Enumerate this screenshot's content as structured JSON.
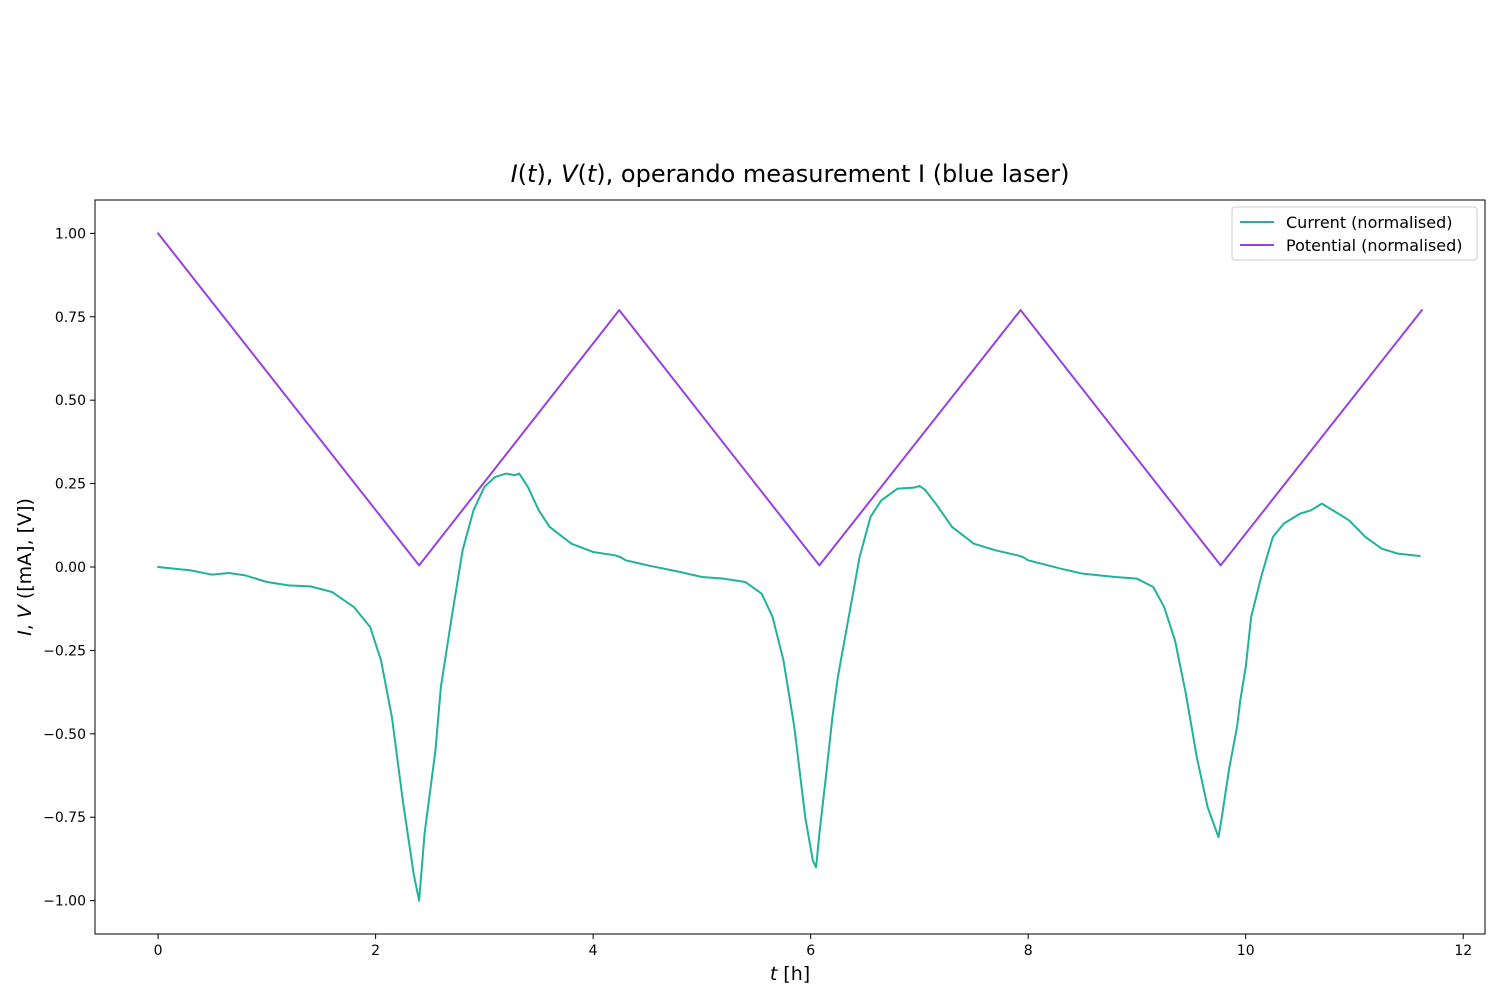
{
  "chart_data": {
    "type": "line",
    "title": "I(t), V(t), operando measurement I (blue laser)",
    "xlabel": "t [h]",
    "ylabel": "I, V ([mA], [V])",
    "xlim": [
      -0.58,
      12.2
    ],
    "ylim": [
      -1.1,
      1.1
    ],
    "x_ticks": [
      0,
      2,
      4,
      6,
      8,
      10,
      12
    ],
    "y_ticks": [
      1.0,
      0.75,
      0.5,
      0.25,
      0.0,
      -0.25,
      -0.5,
      -0.75,
      -1.0
    ],
    "x_tick_labels": [
      "0",
      "2",
      "4",
      "6",
      "8",
      "10",
      "12"
    ],
    "y_tick_labels": [
      "1.00",
      "0.75",
      "0.50",
      "0.25",
      "0.00",
      "−0.25",
      "−0.50",
      "−0.75",
      "−1.00"
    ],
    "grid": false,
    "legend_position": "top-right",
    "series": [
      {
        "name": "Current (normalised)",
        "color": "#20b29a",
        "points": [
          [
            0.0,
            0.0
          ],
          [
            0.3,
            -0.01
          ],
          [
            0.45,
            -0.02
          ],
          [
            0.5,
            -0.023
          ],
          [
            0.65,
            -0.018
          ],
          [
            0.8,
            -0.025
          ],
          [
            1.0,
            -0.045
          ],
          [
            1.2,
            -0.055
          ],
          [
            1.4,
            -0.058
          ],
          [
            1.6,
            -0.075
          ],
          [
            1.8,
            -0.12
          ],
          [
            1.95,
            -0.18
          ],
          [
            2.05,
            -0.28
          ],
          [
            2.15,
            -0.45
          ],
          [
            2.25,
            -0.7
          ],
          [
            2.35,
            -0.92
          ],
          [
            2.4,
            -1.0
          ],
          [
            2.45,
            -0.8
          ],
          [
            2.55,
            -0.55
          ],
          [
            2.6,
            -0.36
          ],
          [
            2.7,
            -0.15
          ],
          [
            2.8,
            0.05
          ],
          [
            2.9,
            0.17
          ],
          [
            3.0,
            0.24
          ],
          [
            3.1,
            0.27
          ],
          [
            3.2,
            0.28
          ],
          [
            3.28,
            0.275
          ],
          [
            3.32,
            0.28
          ],
          [
            3.4,
            0.24
          ],
          [
            3.5,
            0.17
          ],
          [
            3.6,
            0.12
          ],
          [
            3.8,
            0.07
          ],
          [
            4.0,
            0.045
          ],
          [
            4.2,
            0.035
          ],
          [
            4.25,
            0.03
          ],
          [
            4.3,
            0.02
          ],
          [
            4.5,
            0.005
          ],
          [
            4.8,
            -0.015
          ],
          [
            5.0,
            -0.03
          ],
          [
            5.2,
            -0.035
          ],
          [
            5.4,
            -0.045
          ],
          [
            5.55,
            -0.08
          ],
          [
            5.65,
            -0.15
          ],
          [
            5.75,
            -0.28
          ],
          [
            5.85,
            -0.48
          ],
          [
            5.95,
            -0.75
          ],
          [
            6.02,
            -0.88
          ],
          [
            6.05,
            -0.9
          ],
          [
            6.08,
            -0.8
          ],
          [
            6.15,
            -0.6
          ],
          [
            6.2,
            -0.45
          ],
          [
            6.25,
            -0.33
          ],
          [
            6.35,
            -0.15
          ],
          [
            6.45,
            0.03
          ],
          [
            6.55,
            0.15
          ],
          [
            6.65,
            0.2
          ],
          [
            6.8,
            0.235
          ],
          [
            6.95,
            0.238
          ],
          [
            7.0,
            0.243
          ],
          [
            7.05,
            0.232
          ],
          [
            7.15,
            0.19
          ],
          [
            7.3,
            0.12
          ],
          [
            7.5,
            0.07
          ],
          [
            7.7,
            0.05
          ],
          [
            7.9,
            0.035
          ],
          [
            7.95,
            0.03
          ],
          [
            8.0,
            0.02
          ],
          [
            8.3,
            -0.005
          ],
          [
            8.5,
            -0.02
          ],
          [
            8.8,
            -0.03
          ],
          [
            9.0,
            -0.035
          ],
          [
            9.15,
            -0.06
          ],
          [
            9.25,
            -0.12
          ],
          [
            9.35,
            -0.22
          ],
          [
            9.45,
            -0.38
          ],
          [
            9.55,
            -0.57
          ],
          [
            9.65,
            -0.72
          ],
          [
            9.75,
            -0.81
          ],
          [
            9.78,
            -0.75
          ],
          [
            9.85,
            -0.6
          ],
          [
            9.92,
            -0.48
          ],
          [
            9.95,
            -0.4
          ],
          [
            10.0,
            -0.3
          ],
          [
            10.05,
            -0.15
          ],
          [
            10.15,
            -0.02
          ],
          [
            10.25,
            0.09
          ],
          [
            10.35,
            0.13
          ],
          [
            10.5,
            0.16
          ],
          [
            10.6,
            0.17
          ],
          [
            10.7,
            0.19
          ],
          [
            10.8,
            0.17
          ],
          [
            10.95,
            0.14
          ],
          [
            11.1,
            0.09
          ],
          [
            11.25,
            0.055
          ],
          [
            11.4,
            0.04
          ],
          [
            11.6,
            0.033
          ]
        ]
      },
      {
        "name": "Potential (normalised)",
        "color": "#9741e0",
        "points": [
          [
            0.0,
            1.0
          ],
          [
            2.4,
            0.005
          ],
          [
            4.24,
            0.77
          ],
          [
            6.08,
            0.005
          ],
          [
            7.93,
            0.77
          ],
          [
            9.77,
            0.005
          ],
          [
            11.62,
            0.77
          ]
        ]
      }
    ]
  }
}
